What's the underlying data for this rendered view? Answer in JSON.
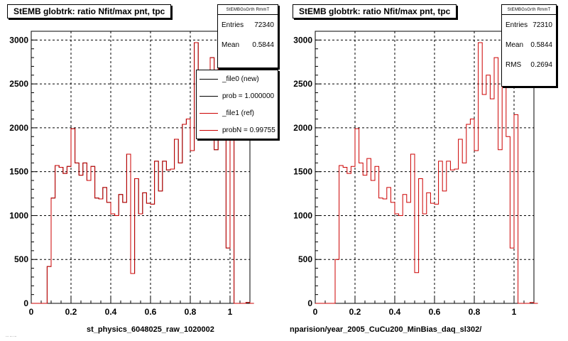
{
  "panels": [
    {
      "title": "StEMB globtrk: ratio Nfit/max pnt, tpc",
      "stats": {
        "header": "StEMBGsGrth RmmT",
        "rows": [
          {
            "label": "Entries",
            "value": "72340"
          },
          {
            "label": "Mean",
            "value": "0.5844"
          }
        ]
      },
      "xlabel": "st_physics_6048025_raw_1020002",
      "legend": [
        {
          "label": "_file0 (new)",
          "color": "#000000"
        },
        {
          "label": "prob = 1.000000",
          "color": "#000000"
        },
        {
          "label": "_file1 (ref)",
          "color": "#cc0000"
        },
        {
          "label": "probN = 0.99755",
          "color": "#cc0000"
        }
      ]
    },
    {
      "title": "StEMB globtrk: ratio Nfit/max pnt, tpc",
      "stats": {
        "header": "StEMBGsGrth RmmT",
        "rows": [
          {
            "label": "Entries",
            "value": "72310"
          },
          {
            "label": "Mean",
            "value": "0.5844"
          },
          {
            "label": "RMS",
            "value": "0.2694"
          }
        ]
      },
      "xlabel": "nparision/year_2005_CuCu200_MinBias_daq_sl302/"
    }
  ],
  "footnote": "...  ...  ...",
  "colors": {
    "ref": "#cc0000",
    "new": "#000000",
    "grid": "#000000"
  },
  "chart_data": [
    {
      "type": "bar",
      "style": "step-histogram",
      "grid": true,
      "xlim": [
        0,
        1.1
      ],
      "ylim": [
        0,
        3100
      ],
      "x_ticks": [
        0,
        0.2,
        0.4,
        0.6,
        0.8,
        1
      ],
      "y_ticks": [
        0,
        500,
        1000,
        1500,
        2000,
        2500,
        3000
      ],
      "bin_edges_start": 0,
      "bin_width": 0.02,
      "series": [
        {
          "name": "_file1 (ref)",
          "values": [
            0,
            0,
            0,
            0,
            420,
            1200,
            1570,
            1550,
            1480,
            1560,
            1990,
            1600,
            1460,
            1600,
            1400,
            1560,
            1200,
            1190,
            1320,
            1150,
            1020,
            1000,
            1240,
            1150,
            1700,
            340,
            1420,
            1020,
            1260,
            1140,
            1130,
            1620,
            1280,
            1620,
            1520,
            1530,
            1870,
            1600,
            2040,
            2100,
            1740,
            2970,
            2380,
            2600,
            2330,
            2800,
            1750,
            2800,
            1900,
            630,
            2150,
            0,
            0,
            0,
            10,
            0
          ]
        },
        {
          "name": "_file0 (new)",
          "values": [
            0,
            0,
            0,
            0,
            420,
            1200,
            1570,
            1550,
            1480,
            1560,
            1990,
            1600,
            1460,
            1600,
            1400,
            1560,
            1200,
            1190,
            1320,
            1150,
            1020,
            1000,
            1240,
            1150,
            1700,
            340,
            1420,
            1020,
            1260,
            1140,
            1130,
            1620,
            1280,
            1620,
            1520,
            1530,
            1870,
            1600,
            2040,
            2100,
            1740,
            2970,
            2380,
            2600,
            2330,
            2800,
            1750,
            2800,
            1900,
            630,
            2150,
            0,
            0,
            0,
            10,
            0
          ]
        }
      ]
    },
    {
      "type": "bar",
      "style": "step-histogram",
      "grid": true,
      "xlim": [
        0,
        1.1
      ],
      "ylim": [
        0,
        3100
      ],
      "x_ticks": [
        0,
        0.2,
        0.4,
        0.6,
        0.8,
        1
      ],
      "y_ticks": [
        0,
        500,
        1000,
        1500,
        2000,
        2500,
        3000
      ],
      "bin_edges_start": 0,
      "bin_width": 0.02,
      "series": [
        {
          "values": [
            0,
            0,
            0,
            0,
            0,
            500,
            1570,
            1550,
            1480,
            1560,
            1990,
            1600,
            1460,
            1650,
            1400,
            1560,
            1200,
            1190,
            1320,
            1150,
            1020,
            1000,
            1240,
            1150,
            1700,
            350,
            1420,
            1020,
            1260,
            1140,
            1130,
            1620,
            1280,
            1620,
            1520,
            1530,
            1870,
            1600,
            2040,
            2100,
            1740,
            2970,
            2380,
            2600,
            2330,
            2800,
            1750,
            2800,
            1900,
            630,
            2150,
            0,
            0,
            0,
            10,
            0
          ]
        }
      ]
    }
  ]
}
